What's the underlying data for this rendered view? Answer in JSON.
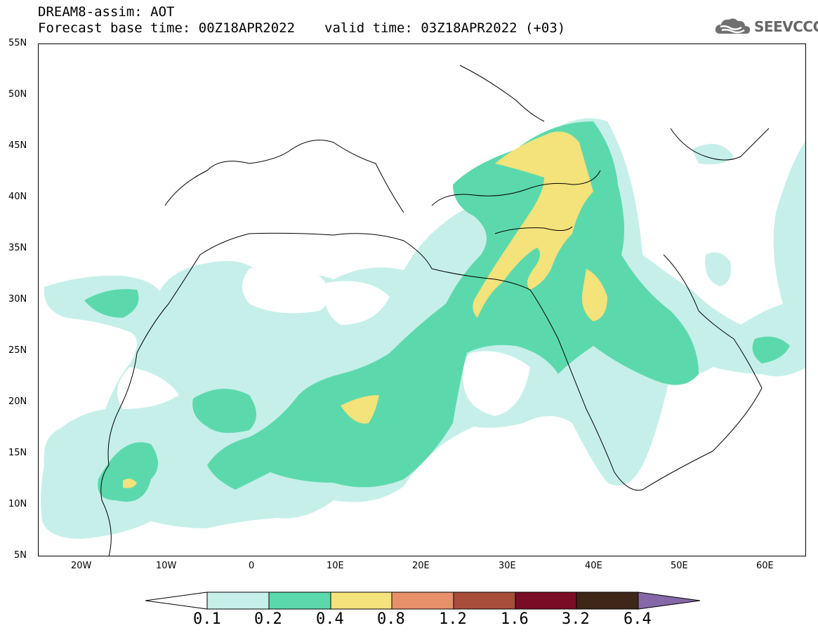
{
  "header": {
    "line1": "DREAM8-assim: AOT",
    "base_label": "Forecast base time: 00Z18APR2022",
    "valid_label": "valid time: 03Z18APR2022 (+03)"
  },
  "logo": {
    "text": "SEEVCCC",
    "icon": "cloud-icon"
  },
  "map": {
    "lat_labels": [
      "55N",
      "50N",
      "45N",
      "40N",
      "35N",
      "30N",
      "25N",
      "20N",
      "15N",
      "10N",
      "5N"
    ],
    "lon_labels": [
      "20W",
      "10W",
      "0",
      "10E",
      "20E",
      "30E",
      "40E",
      "50E",
      "60E"
    ]
  },
  "colorbar": {
    "labels": [
      "0.1",
      "0.2",
      "0.4",
      "0.8",
      "1.2",
      "1.6",
      "3.2",
      "6.4"
    ],
    "colors": [
      "#ffffff",
      "#c6efe9",
      "#5cd9ac",
      "#f4e27a",
      "#e8906a",
      "#a84d3b",
      "#7a0d25",
      "#3e2718",
      "#8668a8"
    ]
  }
}
